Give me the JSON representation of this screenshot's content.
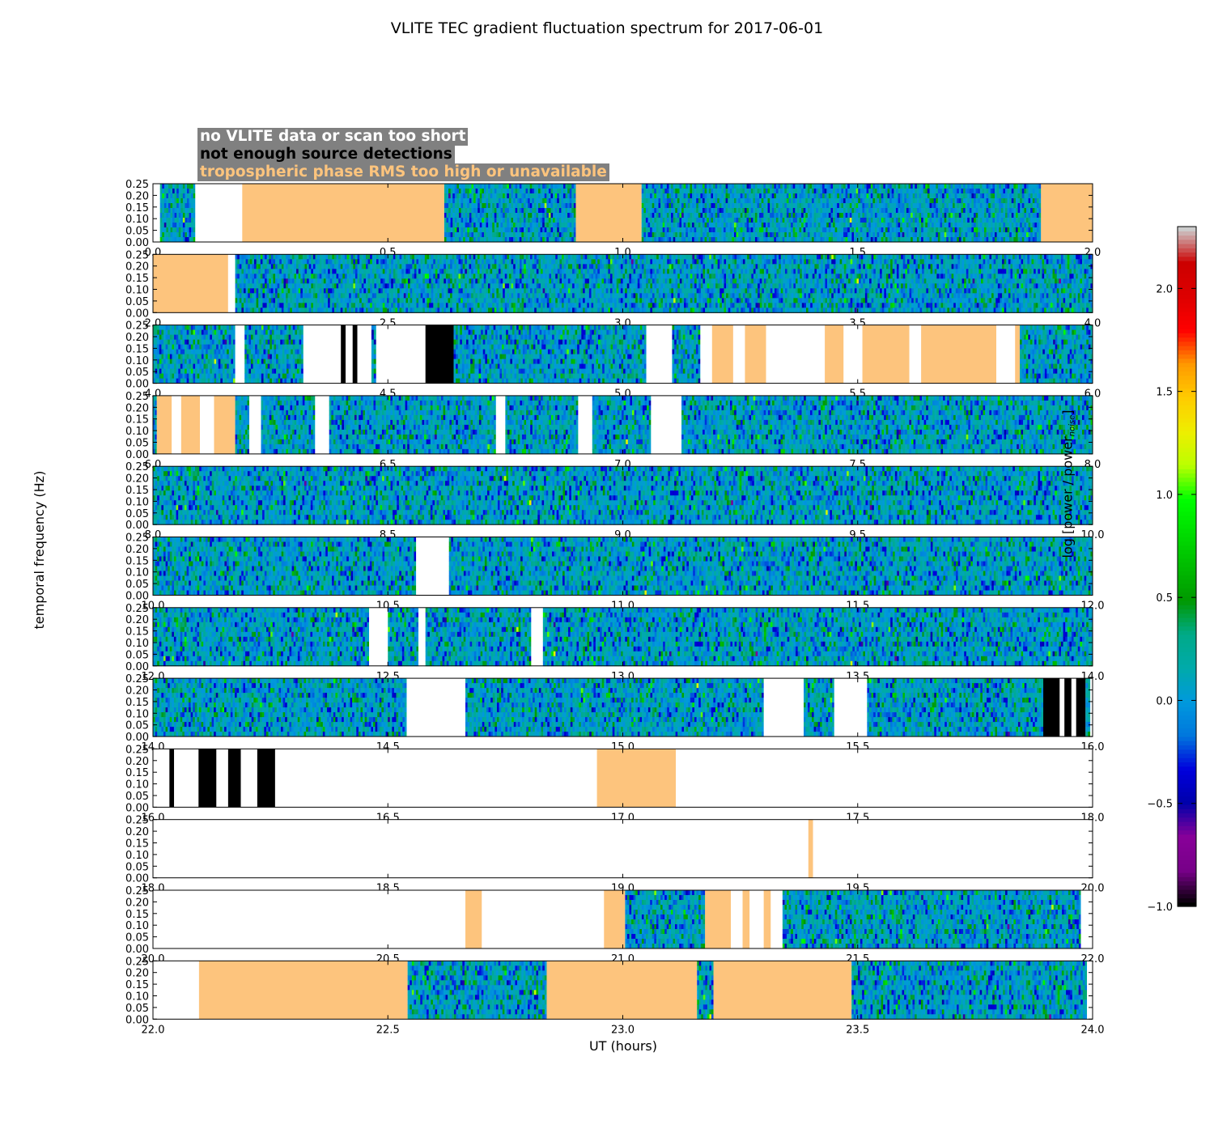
{
  "chart_data": {
    "type": "heatmap",
    "title": "VLITE TEC gradient fluctuation spectrum for 2017-06-01",
    "xlabel": "UT (hours)",
    "ylabel": "temporal frequency (Hz)",
    "colorbar": {
      "label_prefix": "log [power / power",
      "label_sub": "noise",
      "label_suffix": "]",
      "range": [
        -1.0,
        2.3
      ],
      "ticks": [
        "−1.0",
        "−0.5",
        "0.0",
        "0.5",
        "1.0",
        "1.5",
        "2.0"
      ],
      "tick_values": [
        -1.0,
        -0.5,
        0.0,
        0.5,
        1.0,
        1.5,
        2.0
      ]
    },
    "ylim": [
      0,
      0.25
    ],
    "y_ticks": [
      "0.00",
      "0.05",
      "0.10",
      "0.15",
      "0.20",
      "0.25"
    ],
    "legend": [
      {
        "label": "no VLITE data or scan too short",
        "color": "#ffffff"
      },
      {
        "label": "not enough source detections",
        "color": "#000000"
      },
      {
        "label": "tropospheric phase RMS too high or unavailable",
        "color": "#fdc47d"
      }
    ],
    "mask_colors": {
      "nodata": "#ffffff",
      "nodet": "#000000",
      "trop": "#fdc47d"
    },
    "colormap": "nipy_spectral",
    "panels": [
      {
        "xlim": [
          0,
          2
        ],
        "x_ticks": [
          "0.0",
          "0.5",
          "1.0",
          "1.5",
          "2.0"
        ],
        "segments": [
          [
            "nodata",
            0,
            0.015
          ],
          [
            "data",
            0.015,
            0.09
          ],
          [
            "nodata",
            0.09,
            0.19
          ],
          [
            "trop",
            0.19,
            0.62
          ],
          [
            "data",
            0.62,
            0.9
          ],
          [
            "trop",
            0.9,
            1.04
          ],
          [
            "data",
            1.04,
            1.89
          ],
          [
            "trop",
            1.89,
            2.0
          ]
        ]
      },
      {
        "xlim": [
          2,
          4
        ],
        "x_ticks": [
          "2.0",
          "2.5",
          "3.0",
          "3.5",
          "4.0"
        ],
        "segments": [
          [
            "trop",
            2.0,
            2.16
          ],
          [
            "nodata",
            2.16,
            2.175
          ],
          [
            "data",
            2.175,
            4.0
          ]
        ]
      },
      {
        "xlim": [
          4,
          6
        ],
        "x_ticks": [
          "4.0",
          "4.5",
          "5.0",
          "5.5",
          "6.0"
        ],
        "segments": [
          [
            "data",
            4.0,
            4.175
          ],
          [
            "nodata",
            4.175,
            4.195
          ],
          [
            "data",
            4.195,
            4.32
          ],
          [
            "nodata",
            4.32,
            4.4
          ],
          [
            "nodet",
            4.4,
            4.41
          ],
          [
            "nodata",
            4.41,
            4.425
          ],
          [
            "nodet",
            4.425,
            4.435
          ],
          [
            "nodata",
            4.435,
            4.465
          ],
          [
            "data",
            4.465,
            4.475
          ],
          [
            "nodata",
            4.475,
            4.58
          ],
          [
            "nodet",
            4.58,
            4.64
          ],
          [
            "data",
            4.64,
            5.05
          ],
          [
            "nodata",
            5.05,
            5.105
          ],
          [
            "data",
            5.105,
            5.165
          ],
          [
            "nodata",
            5.165,
            5.19
          ],
          [
            "trop",
            5.19,
            5.235
          ],
          [
            "nodata",
            5.235,
            5.26
          ],
          [
            "trop",
            5.26,
            5.305
          ],
          [
            "nodata",
            5.305,
            5.43
          ],
          [
            "trop",
            5.43,
            5.47
          ],
          [
            "nodata",
            5.47,
            5.51
          ],
          [
            "trop",
            5.51,
            5.61
          ],
          [
            "nodata",
            5.61,
            5.635
          ],
          [
            "trop",
            5.635,
            5.795
          ],
          [
            "nodata",
            5.795,
            5.835
          ],
          [
            "trop",
            5.835,
            5.845
          ],
          [
            "data",
            5.845,
            6.0
          ]
        ]
      },
      {
        "xlim": [
          6,
          8
        ],
        "x_ticks": [
          "6.0",
          "6.5",
          "7.0",
          "7.5",
          "8.0"
        ],
        "segments": [
          [
            "data",
            6.0,
            6.008
          ],
          [
            "trop",
            6.008,
            6.04
          ],
          [
            "nodata",
            6.04,
            6.06
          ],
          [
            "trop",
            6.06,
            6.1
          ],
          [
            "nodata",
            6.1,
            6.13
          ],
          [
            "trop",
            6.13,
            6.175
          ],
          [
            "data",
            6.175,
            6.205
          ],
          [
            "nodata",
            6.205,
            6.23
          ],
          [
            "data",
            6.23,
            6.345
          ],
          [
            "nodata",
            6.345,
            6.375
          ],
          [
            "data",
            6.375,
            6.73
          ],
          [
            "nodata",
            6.73,
            6.75
          ],
          [
            "data",
            6.75,
            6.905
          ],
          [
            "nodata",
            6.905,
            6.935
          ],
          [
            "data",
            6.935,
            7.06
          ],
          [
            "nodata",
            7.06,
            7.125
          ],
          [
            "data",
            7.125,
            8.0
          ]
        ]
      },
      {
        "xlim": [
          8,
          10
        ],
        "x_ticks": [
          "8.0",
          "8.5",
          "9.0",
          "9.5",
          "10.0"
        ],
        "segments": [
          [
            "data",
            8.0,
            10.0
          ]
        ]
      },
      {
        "xlim": [
          10,
          12
        ],
        "x_ticks": [
          "10.0",
          "10.5",
          "11.0",
          "11.5",
          "12.0"
        ],
        "segments": [
          [
            "data",
            10.0,
            10.56
          ],
          [
            "nodata",
            10.56,
            10.63
          ],
          [
            "data",
            10.63,
            12.0
          ]
        ]
      },
      {
        "xlim": [
          12,
          14
        ],
        "x_ticks": [
          "12.0",
          "12.5",
          "13.0",
          "13.5",
          "14.0"
        ],
        "segments": [
          [
            "data",
            12.0,
            12.46
          ],
          [
            "nodata",
            12.46,
            12.5
          ],
          [
            "data",
            12.5,
            12.565
          ],
          [
            "nodata",
            12.565,
            12.58
          ],
          [
            "data",
            12.58,
            12.805
          ],
          [
            "nodata",
            12.805,
            12.83
          ],
          [
            "data",
            12.83,
            14.0
          ]
        ]
      },
      {
        "xlim": [
          14,
          16
        ],
        "x_ticks": [
          "14.0",
          "14.5",
          "15.0",
          "15.5",
          "16.0"
        ],
        "segments": [
          [
            "data",
            14.0,
            14.54
          ],
          [
            "nodata",
            14.54,
            14.665
          ],
          [
            "data",
            14.665,
            15.3
          ],
          [
            "nodata",
            15.3,
            15.385
          ],
          [
            "data",
            15.385,
            15.45
          ],
          [
            "nodata",
            15.45,
            15.52
          ],
          [
            "data",
            15.52,
            15.895
          ],
          [
            "nodet",
            15.895,
            15.93
          ],
          [
            "nodata",
            15.93,
            15.94
          ],
          [
            "nodet",
            15.94,
            15.955
          ],
          [
            "nodata",
            15.955,
            15.965
          ],
          [
            "nodet",
            15.965,
            15.985
          ],
          [
            "data",
            15.985,
            15.995
          ],
          [
            "nodata",
            15.995,
            16.0
          ]
        ]
      },
      {
        "xlim": [
          16,
          18
        ],
        "x_ticks": [
          "16.0",
          "16.5",
          "17.0",
          "17.5",
          "18.0"
        ],
        "segments": [
          [
            "nodata",
            16.0,
            16.035
          ],
          [
            "nodet",
            16.035,
            16.045
          ],
          [
            "nodata",
            16.045,
            16.097
          ],
          [
            "nodet",
            16.097,
            16.135
          ],
          [
            "nodata",
            16.135,
            16.16
          ],
          [
            "nodet",
            16.16,
            16.187
          ],
          [
            "nodata",
            16.187,
            16.222
          ],
          [
            "nodet",
            16.222,
            16.26
          ],
          [
            "nodata",
            16.26,
            16.945
          ],
          [
            "trop",
            16.945,
            17.113
          ],
          [
            "nodata",
            17.113,
            18.0
          ]
        ]
      },
      {
        "xlim": [
          18,
          20
        ],
        "x_ticks": [
          "18.0",
          "18.5",
          "19.0",
          "19.5",
          "20.0"
        ],
        "segments": [
          [
            "nodata",
            18.0,
            19.395
          ],
          [
            "trop",
            19.395,
            19.405
          ],
          [
            "nodata",
            19.405,
            20.0
          ]
        ]
      },
      {
        "xlim": [
          20,
          22
        ],
        "x_ticks": [
          "20.0",
          "20.5",
          "21.0",
          "21.5",
          "22.0"
        ],
        "segments": [
          [
            "nodata",
            20.0,
            20.665
          ],
          [
            "trop",
            20.665,
            20.7
          ],
          [
            "nodata",
            20.7,
            20.96
          ],
          [
            "trop",
            20.96,
            21.005
          ],
          [
            "data",
            21.005,
            21.12
          ],
          [
            "data",
            21.12,
            21.175
          ],
          [
            "trop",
            21.175,
            21.23
          ],
          [
            "nodata",
            21.23,
            21.255
          ],
          [
            "trop",
            21.255,
            21.27
          ],
          [
            "nodata",
            21.27,
            21.3
          ],
          [
            "trop",
            21.3,
            21.315
          ],
          [
            "nodata",
            21.315,
            21.34
          ],
          [
            "data",
            21.34,
            21.975
          ],
          [
            "nodata",
            21.975,
            22.0
          ]
        ]
      },
      {
        "xlim": [
          22,
          24
        ],
        "x_ticks": [
          "22.0",
          "22.5",
          "23.0",
          "23.5",
          "24.0"
        ],
        "segments": [
          [
            "nodata",
            22.0,
            22.098
          ],
          [
            "trop",
            22.098,
            22.542
          ],
          [
            "data",
            22.542,
            22.838
          ],
          [
            "trop",
            22.838,
            23.158
          ],
          [
            "data",
            23.158,
            23.193
          ],
          [
            "trop",
            23.193,
            23.487
          ],
          [
            "data",
            23.487,
            23.988
          ],
          [
            "nodata",
            23.988,
            24.0
          ]
        ]
      }
    ]
  }
}
